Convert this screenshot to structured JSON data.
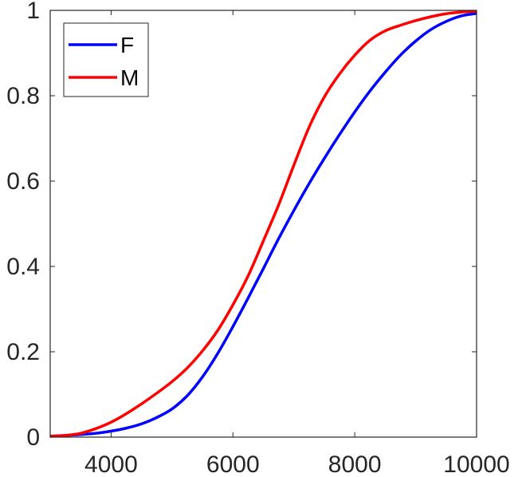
{
  "chart_data": {
    "type": "line",
    "title": "",
    "xlabel": "",
    "ylabel": "",
    "xlim": [
      3000,
      10000
    ],
    "ylim": [
      0,
      1
    ],
    "xticks": [
      "4000",
      "6000",
      "8000",
      "10000"
    ],
    "yticks": [
      "0",
      "0.2",
      "0.4",
      "0.6",
      "0.8",
      "1"
    ],
    "grid": false,
    "legend": "top-left",
    "series": [
      {
        "name": "F",
        "color": "#0000ff",
        "x": [
          3000,
          3250,
          3500,
          3750,
          4000,
          4250,
          4500,
          4750,
          5000,
          5250,
          5500,
          5750,
          6000,
          6250,
          6500,
          6750,
          7000,
          7250,
          7500,
          7750,
          8000,
          8250,
          8500,
          8750,
          9000,
          9250,
          9500,
          9750,
          10000
        ],
        "y": [
          0.002,
          0.004,
          0.006,
          0.009,
          0.014,
          0.021,
          0.031,
          0.046,
          0.066,
          0.097,
          0.141,
          0.196,
          0.259,
          0.326,
          0.395,
          0.465,
          0.531,
          0.594,
          0.653,
          0.709,
          0.762,
          0.811,
          0.855,
          0.895,
          0.928,
          0.955,
          0.974,
          0.987,
          0.993
        ]
      },
      {
        "name": "M",
        "color": "#ff0000",
        "x": [
          3000,
          3250,
          3500,
          3750,
          4000,
          4250,
          4500,
          4750,
          5000,
          5250,
          5500,
          5750,
          6000,
          6250,
          6500,
          6750,
          7000,
          7250,
          7500,
          7750,
          8000,
          8250,
          8500,
          8750,
          9000,
          9250,
          9500,
          9750,
          10000
        ],
        "y": [
          0.002,
          0.004,
          0.009,
          0.02,
          0.035,
          0.055,
          0.078,
          0.103,
          0.13,
          0.162,
          0.202,
          0.25,
          0.31,
          0.378,
          0.46,
          0.544,
          0.637,
          0.726,
          0.797,
          0.851,
          0.895,
          0.93,
          0.952,
          0.965,
          0.976,
          0.985,
          0.992,
          0.996,
          0.998
        ]
      }
    ]
  }
}
